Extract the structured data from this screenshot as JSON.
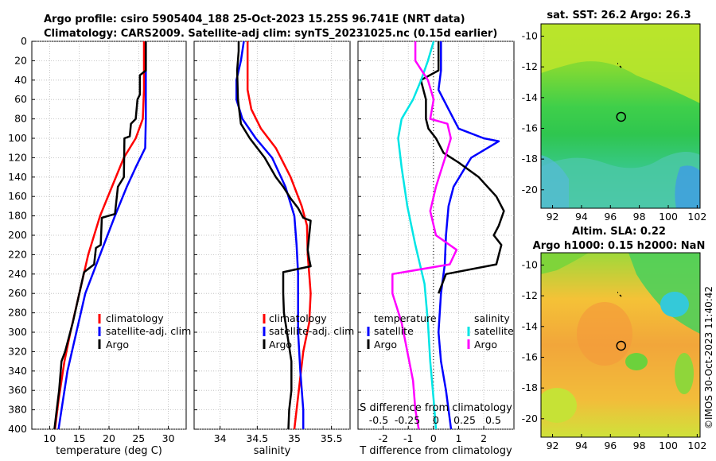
{
  "header": {
    "title_line1": "Argo profile: csiro 5905404_188 25-Oct-2023 15.25S 96.741E (NRT data)",
    "title_line2": "Climatology: CARS2009. Satellite-adj clim: synTS_20231025.nc (0.15d earlier)"
  },
  "colors": {
    "climatology": "#ff0000",
    "satellite": "#0000ff",
    "argo": "#000000",
    "sal_satellite": "#00e5e5",
    "sal_argo": "#ff00ff"
  },
  "depth_axis": {
    "ticks": [
      "0",
      "20",
      "40",
      "60",
      "80",
      "100",
      "120",
      "140",
      "160",
      "180",
      "200",
      "220",
      "240",
      "260",
      "280",
      "300",
      "320",
      "340",
      "360",
      "380",
      "400"
    ]
  },
  "chart_data": [
    {
      "type": "line",
      "name": "temperature",
      "xlabel": "temperature (deg C)",
      "ylabel": "depth",
      "xlim": [
        7,
        33
      ],
      "ylim": [
        0,
        400
      ],
      "xticks": [
        "10",
        "15",
        "20",
        "25",
        "30"
      ],
      "xtick_values": [
        10,
        15,
        20,
        25,
        30
      ],
      "legend": [
        "climatology",
        "satellite-adj. clim",
        "Argo"
      ],
      "series": [
        {
          "name": "climatology",
          "color": "#ff0000",
          "points": [
            [
              25.9,
              0
            ],
            [
              25.9,
              50
            ],
            [
              25.7,
              80
            ],
            [
              24.5,
              100
            ],
            [
              22.5,
              120
            ],
            [
              20.5,
              150
            ],
            [
              18.5,
              180
            ],
            [
              16.5,
              220
            ],
            [
              15.0,
              260
            ],
            [
              13.5,
              300
            ],
            [
              12.5,
              330
            ],
            [
              11.5,
              370
            ],
            [
              10.9,
              400
            ]
          ]
        },
        {
          "name": "satellite-adj. clim",
          "color": "#0000ff",
          "points": [
            [
              26.2,
              0
            ],
            [
              26.2,
              80
            ],
            [
              26.1,
              110
            ],
            [
              24.5,
              130
            ],
            [
              23.0,
              150
            ],
            [
              21.0,
              180
            ],
            [
              18.5,
              220
            ],
            [
              16.0,
              260
            ],
            [
              14.5,
              300
            ],
            [
              13.0,
              340
            ],
            [
              12.0,
              380
            ],
            [
              11.5,
              400
            ]
          ]
        },
        {
          "name": "Argo",
          "color": "#000000",
          "points": [
            [
              26.2,
              0
            ],
            [
              26.2,
              30
            ],
            [
              25.2,
              35
            ],
            [
              25.2,
              55
            ],
            [
              24.8,
              60
            ],
            [
              24.5,
              80
            ],
            [
              23.7,
              85
            ],
            [
              23.5,
              98
            ],
            [
              22.6,
              100
            ],
            [
              22.5,
              140
            ],
            [
              21.5,
              150
            ],
            [
              21.0,
              178
            ],
            [
              18.8,
              182
            ],
            [
              18.6,
              210
            ],
            [
              17.8,
              213
            ],
            [
              17.5,
              230
            ],
            [
              15.8,
              238
            ],
            [
              15.0,
              260
            ],
            [
              13.9,
              290
            ],
            [
              12.6,
              320
            ],
            [
              12.0,
              330
            ],
            [
              11.6,
              360
            ],
            [
              11.2,
              380
            ],
            [
              10.8,
              400
            ]
          ]
        }
      ]
    },
    {
      "type": "line",
      "name": "salinity",
      "xlabel": "salinity",
      "ylabel": "depth",
      "xlim": [
        33.65,
        35.75
      ],
      "ylim": [
        0,
        400
      ],
      "xticks": [
        "34",
        "34.5",
        "35",
        "35.5"
      ],
      "xtick_values": [
        34,
        34.5,
        35,
        35.5
      ],
      "legend": [
        "climatology",
        "satellite-adj. clim",
        "Argo"
      ],
      "series": [
        {
          "name": "climatology",
          "color": "#ff0000",
          "points": [
            [
              34.37,
              0
            ],
            [
              34.37,
              50
            ],
            [
              34.42,
              70
            ],
            [
              34.55,
              90
            ],
            [
              34.75,
              110
            ],
            [
              34.95,
              140
            ],
            [
              35.1,
              170
            ],
            [
              35.17,
              190
            ],
            [
              35.18,
              220
            ],
            [
              35.2,
              240
            ],
            [
              35.22,
              260
            ],
            [
              35.2,
              290
            ],
            [
              35.12,
              320
            ],
            [
              35.06,
              360
            ],
            [
              35.0,
              400
            ]
          ]
        },
        {
          "name": "satellite-adj. clim",
          "color": "#0000ff",
          "points": [
            [
              34.32,
              0
            ],
            [
              34.28,
              20
            ],
            [
              34.22,
              40
            ],
            [
              34.22,
              60
            ],
            [
              34.3,
              80
            ],
            [
              34.48,
              100
            ],
            [
              34.7,
              120
            ],
            [
              34.88,
              150
            ],
            [
              35.0,
              180
            ],
            [
              35.03,
              210
            ],
            [
              35.05,
              240
            ],
            [
              35.05,
              270
            ],
            [
              35.05,
              300
            ],
            [
              35.08,
              340
            ],
            [
              35.12,
              380
            ],
            [
              35.12,
              400
            ]
          ]
        },
        {
          "name": "Argo",
          "color": "#000000",
          "points": [
            [
              34.25,
              0
            ],
            [
              34.25,
              10
            ],
            [
              34.23,
              30
            ],
            [
              34.24,
              60
            ],
            [
              34.28,
              85
            ],
            [
              34.4,
              100
            ],
            [
              34.6,
              120
            ],
            [
              34.75,
              140
            ],
            [
              34.85,
              150
            ],
            [
              34.95,
              162
            ],
            [
              35.05,
              172
            ],
            [
              35.12,
              182
            ],
            [
              35.22,
              185
            ],
            [
              35.2,
              200
            ],
            [
              35.18,
              215
            ],
            [
              35.2,
              225
            ],
            [
              35.22,
              232
            ],
            [
              34.85,
              238
            ],
            [
              34.85,
              260
            ],
            [
              34.86,
              280
            ],
            [
              34.9,
              300
            ],
            [
              34.96,
              330
            ],
            [
              34.96,
              360
            ],
            [
              34.93,
              380
            ],
            [
              34.92,
              400
            ]
          ]
        }
      ]
    },
    {
      "type": "line",
      "name": "differences",
      "xlabel": "T difference from climatology",
      "ylabel": "depth",
      "xlim": [
        -3,
        3.2
      ],
      "ylim": [
        0,
        400
      ],
      "xticks": [
        "-2",
        "-1",
        "0",
        "1",
        "2"
      ],
      "xtick_values": [
        -2,
        -1,
        0,
        1,
        2
      ],
      "top_axis_label": "S difference from climatology",
      "top_ticks": [
        "-0.5",
        "-0.25",
        "0",
        "0.25",
        "0.5"
      ],
      "legend_left_title": "temperature",
      "legend_right_title": "salinity",
      "legend_left": [
        "satellite",
        "Argo"
      ],
      "legend_right": [
        "satellite",
        "Argo"
      ],
      "series": [
        {
          "name": "temperature satellite",
          "color": "#0000ff",
          "points": [
            [
              0.3,
              0
            ],
            [
              0.3,
              30
            ],
            [
              0.2,
              50
            ],
            [
              0.6,
              70
            ],
            [
              1.0,
              90
            ],
            [
              2.0,
              100
            ],
            [
              2.6,
              103
            ],
            [
              1.5,
              120
            ],
            [
              0.8,
              150
            ],
            [
              0.6,
              170
            ],
            [
              0.5,
              200
            ],
            [
              0.45,
              230
            ],
            [
              0.3,
              260
            ],
            [
              0.2,
              300
            ],
            [
              0.3,
              330
            ],
            [
              0.5,
              360
            ],
            [
              0.7,
              400
            ]
          ]
        },
        {
          "name": "temperature Argo",
          "color": "#000000",
          "points": [
            [
              0.2,
              0
            ],
            [
              0.2,
              30
            ],
            [
              -0.5,
              40
            ],
            [
              -0.3,
              60
            ],
            [
              -0.3,
              80
            ],
            [
              -0.2,
              90
            ],
            [
              0.1,
              100
            ],
            [
              0.4,
              115
            ],
            [
              1.0,
              125
            ],
            [
              1.8,
              140
            ],
            [
              2.5,
              160
            ],
            [
              2.8,
              175
            ],
            [
              2.6,
              190
            ],
            [
              2.4,
              200
            ],
            [
              2.7,
              210
            ],
            [
              2.5,
              230
            ],
            [
              0.5,
              240
            ],
            [
              0.2,
              260
            ]
          ]
        },
        {
          "name": "salinity satellite",
          "color": "#00e5e5",
          "points": [
            [
              -0.02,
              0
            ],
            [
              -0.07,
              20
            ],
            [
              -0.13,
              40
            ],
            [
              -0.2,
              60
            ],
            [
              -0.3,
              80
            ],
            [
              -0.33,
              100
            ],
            [
              -0.3,
              130
            ],
            [
              -0.25,
              170
            ],
            [
              -0.18,
              210
            ],
            [
              -0.1,
              250
            ],
            [
              -0.07,
              290
            ],
            [
              -0.05,
              330
            ],
            [
              -0.02,
              370
            ],
            [
              0.0,
              400
            ]
          ]
        },
        {
          "name": "salinity Argo",
          "color": "#ff00ff",
          "points": [
            [
              -0.18,
              0
            ],
            [
              -0.18,
              20
            ],
            [
              -0.07,
              40
            ],
            [
              -0.02,
              60
            ],
            [
              -0.05,
              80
            ],
            [
              0.1,
              85
            ],
            [
              0.13,
              100
            ],
            [
              0.08,
              120
            ],
            [
              0.0,
              150
            ],
            [
              -0.05,
              175
            ],
            [
              0.0,
              200
            ],
            [
              0.18,
              215
            ],
            [
              0.12,
              230
            ],
            [
              -0.38,
              240
            ],
            [
              -0.38,
              260
            ],
            [
              -0.3,
              290
            ],
            [
              -0.25,
              320
            ],
            [
              -0.2,
              350
            ],
            [
              -0.18,
              380
            ],
            [
              -0.15,
              400
            ]
          ]
        }
      ]
    }
  ],
  "maps": {
    "sst": {
      "title": "sat. SST: 26.2 Argo: 26.3",
      "xticks": [
        "92",
        "94",
        "96",
        "98",
        "100",
        "102"
      ],
      "yticks": [
        "-10",
        "-12",
        "-14",
        "-16",
        "-18",
        "-20"
      ],
      "xlim": [
        91.2,
        102.2
      ],
      "ylim": [
        -21.2,
        -9.2
      ],
      "marker": [
        96.74,
        -15.25
      ]
    },
    "sla": {
      "title_line1": "Altim. SLA: 0.22",
      "title_line2": "Argo h1000: 0.15 h2000: NaN",
      "xticks": [
        "92",
        "94",
        "96",
        "98",
        "100",
        "102"
      ],
      "yticks": [
        "-10",
        "-12",
        "-14",
        "-16",
        "-18",
        "-20"
      ],
      "xlim": [
        91.2,
        102.2
      ],
      "ylim": [
        -21.2,
        -9.2
      ],
      "marker": [
        96.74,
        -15.25
      ]
    }
  },
  "stamp": "©IMOS 30-Oct-2023 11:40:42"
}
